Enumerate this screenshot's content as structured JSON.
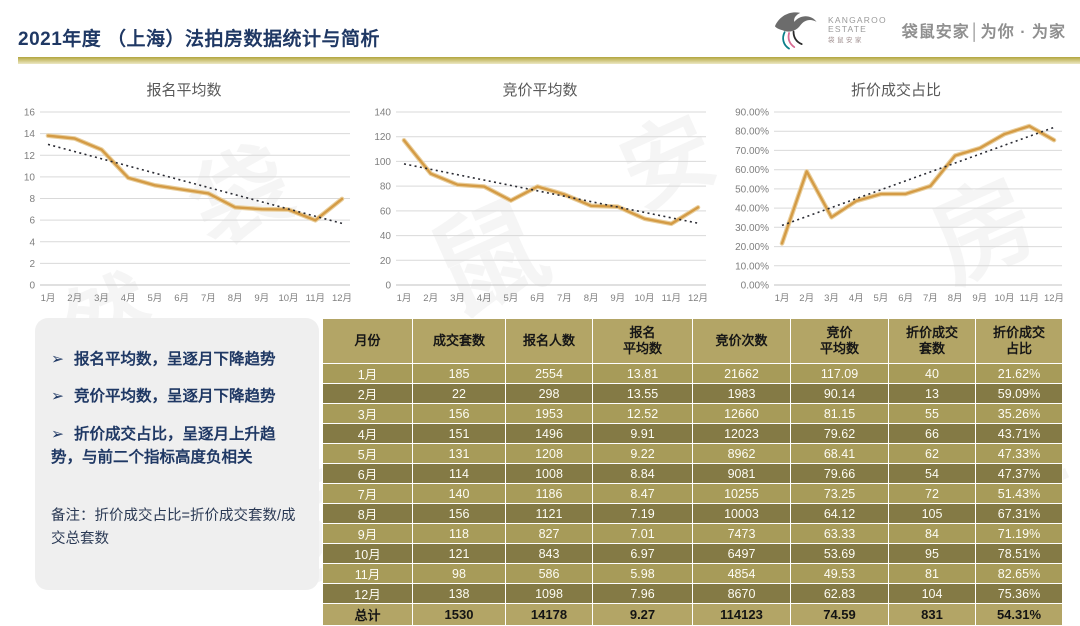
{
  "header": {
    "title": "2021年度 （上海）法拍房数据统计与简析",
    "logo": {
      "brand_en_line1": "KANGAROO",
      "brand_en_line2": "ESTATE",
      "brand_cn_small": "袋鼠安家",
      "tagline": "袋鼠安家│为你 · 为家"
    }
  },
  "watermark_text": "袋鼠安家学房产然",
  "chart_data": [
    {
      "type": "line",
      "title": "报名平均数",
      "categories": [
        "1月",
        "2月",
        "3月",
        "4月",
        "5月",
        "6月",
        "7月",
        "8月",
        "9月",
        "10月",
        "11月",
        "12月"
      ],
      "series": [
        {
          "name": "报名平均数",
          "values": [
            13.81,
            13.55,
            12.52,
            9.91,
            9.22,
            8.84,
            8.47,
            7.19,
            7.01,
            6.97,
            5.98,
            7.96
          ]
        }
      ],
      "trendline": {
        "start": 13.0,
        "end": 5.7,
        "style": "dotted"
      },
      "ylim": [
        0,
        16
      ],
      "ytick": 2,
      "percent": false,
      "grid": true,
      "legend": false,
      "xlabel": "",
      "ylabel": ""
    },
    {
      "type": "line",
      "title": "竞价平均数",
      "categories": [
        "1月",
        "2月",
        "3月",
        "4月",
        "5月",
        "6月",
        "7月",
        "8月",
        "9月",
        "10月",
        "11月",
        "12月"
      ],
      "series": [
        {
          "name": "竞价平均数",
          "values": [
            117.09,
            90.14,
            81.15,
            79.62,
            68.41,
            79.66,
            73.25,
            64.12,
            63.33,
            53.69,
            49.53,
            62.83
          ]
        }
      ],
      "trendline": {
        "start": 98,
        "end": 50,
        "style": "dotted"
      },
      "ylim": [
        0,
        140
      ],
      "ytick": 20,
      "percent": false,
      "grid": true,
      "legend": false,
      "xlabel": "",
      "ylabel": ""
    },
    {
      "type": "line",
      "title": "折价成交占比",
      "categories": [
        "1月",
        "2月",
        "3月",
        "4月",
        "5月",
        "6月",
        "7月",
        "8月",
        "9月",
        "10月",
        "11月",
        "12月"
      ],
      "series": [
        {
          "name": "折价成交占比",
          "values": [
            21.62,
            59.09,
            35.26,
            43.71,
            47.33,
            47.37,
            51.43,
            67.31,
            71.19,
            78.51,
            82.65,
            75.36
          ]
        }
      ],
      "trendline": {
        "start": 31,
        "end": 82,
        "style": "dotted"
      },
      "ylim": [
        0,
        90
      ],
      "ytick": 10,
      "percent": true,
      "grid": true,
      "legend": false,
      "xlabel": "",
      "ylabel": ""
    }
  ],
  "insights": {
    "bullet_marker": "➢",
    "bullets": [
      "报名平均数，呈逐月下降趋势",
      "竞价平均数，呈逐月下降趋势",
      "折价成交占比，呈逐月上升趋势，与前二个指标高度负相关"
    ],
    "note": "备注：折价成交占比=折价成交套数/成交总套数"
  },
  "table": {
    "columns": [
      [
        "月份"
      ],
      [
        "成交套数"
      ],
      [
        "报名人数"
      ],
      [
        "报名",
        "平均数"
      ],
      [
        "竞价次数"
      ],
      [
        "竞价",
        "平均数"
      ],
      [
        "折价成交",
        "套数"
      ],
      [
        "折价成交",
        "占比"
      ]
    ],
    "rows": [
      [
        "1月",
        "185",
        "2554",
        "13.81",
        "21662",
        "117.09",
        "40",
        "21.62%"
      ],
      [
        "2月",
        "22",
        "298",
        "13.55",
        "1983",
        "90.14",
        "13",
        "59.09%"
      ],
      [
        "3月",
        "156",
        "1953",
        "12.52",
        "12660",
        "81.15",
        "55",
        "35.26%"
      ],
      [
        "4月",
        "151",
        "1496",
        "9.91",
        "12023",
        "79.62",
        "66",
        "43.71%"
      ],
      [
        "5月",
        "131",
        "1208",
        "9.22",
        "8962",
        "68.41",
        "62",
        "47.33%"
      ],
      [
        "6月",
        "114",
        "1008",
        "8.84",
        "9081",
        "79.66",
        "54",
        "47.37%"
      ],
      [
        "7月",
        "140",
        "1186",
        "8.47",
        "10255",
        "73.25",
        "72",
        "51.43%"
      ],
      [
        "8月",
        "156",
        "1121",
        "7.19",
        "10003",
        "64.12",
        "105",
        "67.31%"
      ],
      [
        "9月",
        "118",
        "827",
        "7.01",
        "7473",
        "63.33",
        "84",
        "71.19%"
      ],
      [
        "10月",
        "121",
        "843",
        "6.97",
        "6497",
        "53.69",
        "95",
        "78.51%"
      ],
      [
        "11月",
        "98",
        "586",
        "5.98",
        "4854",
        "49.53",
        "81",
        "82.65%"
      ],
      [
        "12月",
        "138",
        "1098",
        "7.96",
        "8670",
        "62.83",
        "104",
        "75.36%"
      ]
    ],
    "total": [
      "总计",
      "1530",
      "14178",
      "9.27",
      "114123",
      "74.59",
      "831",
      "54.31%"
    ]
  },
  "colors": {
    "title_navy": "#1f3864",
    "accent_gold": "#b3a566",
    "row_light": "#a79b59",
    "row_dark": "#847a45",
    "line_orange": "#d49b45",
    "line_halo": "#e9cf9e",
    "trend_dark": "#2a2b33",
    "grid_gray": "#d9d9d9",
    "axis_gray": "#7f7f7f",
    "chart_title_gray": "#595959"
  }
}
